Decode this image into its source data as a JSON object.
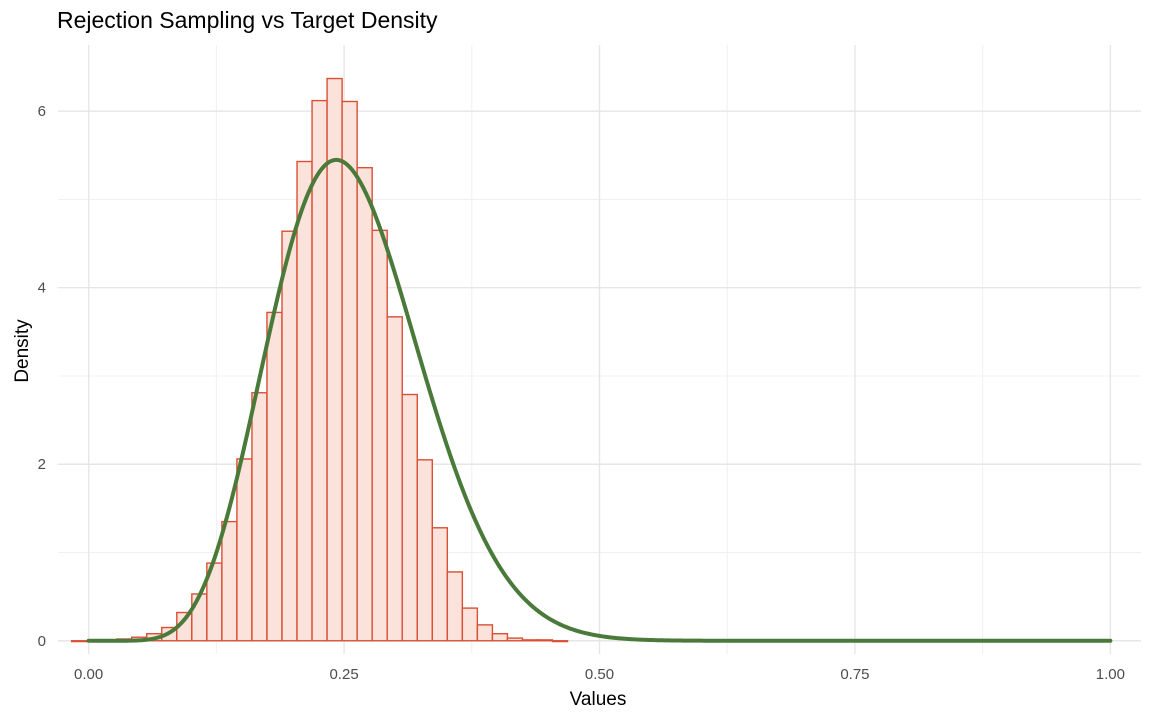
{
  "chart_data": {
    "type": "bar",
    "title": "Rejection Sampling vs Target Density",
    "xlabel": "Values",
    "ylabel": "Density",
    "xlim": [
      -0.03,
      1.03
    ],
    "ylim": [
      -0.15,
      6.75
    ],
    "x_ticks": [
      {
        "value": 0.0,
        "label": "0.00"
      },
      {
        "value": 0.25,
        "label": "0.25"
      },
      {
        "value": 0.5,
        "label": "0.50"
      },
      {
        "value": 0.75,
        "label": "0.75"
      },
      {
        "value": 1.0,
        "label": "1.00"
      }
    ],
    "y_ticks": [
      {
        "value": 0,
        "label": "0"
      },
      {
        "value": 2,
        "label": "2"
      },
      {
        "value": 4,
        "label": "4"
      },
      {
        "value": 6,
        "label": "6"
      }
    ],
    "grid": true,
    "legend": "none",
    "histogram": {
      "bin_start": -0.0167,
      "bin_width": 0.01471,
      "values": [
        0.0,
        0.0,
        0.01,
        0.02,
        0.04,
        0.08,
        0.15,
        0.32,
        0.53,
        0.88,
        1.35,
        2.06,
        2.81,
        3.72,
        4.64,
        5.43,
        6.12,
        6.37,
        6.11,
        5.36,
        4.65,
        3.67,
        2.79,
        2.05,
        1.28,
        0.78,
        0.37,
        0.18,
        0.08,
        0.03,
        0.01,
        0.01,
        0.0
      ],
      "fill_color": "#fbe2da",
      "edge_color": "#d95035"
    },
    "density_curve": {
      "type": "beta",
      "alpha": 9,
      "beta": 26,
      "x_range": [
        0.0,
        1.0
      ],
      "color": "#4a7a3a"
    }
  }
}
